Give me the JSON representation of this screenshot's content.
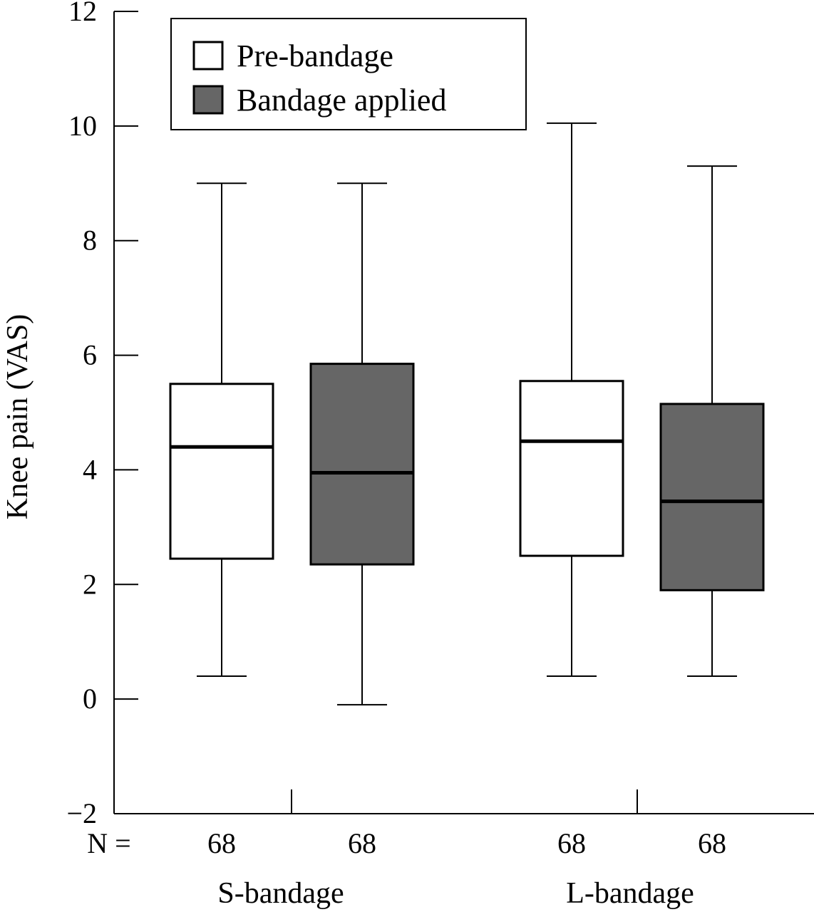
{
  "chart_data": {
    "type": "boxplot",
    "ylabel": "Knee pain (VAS)",
    "ylim": [
      -2,
      12
    ],
    "yticks": [
      -2,
      0,
      2,
      4,
      6,
      8,
      10,
      12
    ],
    "ytick_labels": [
      "−2",
      "0",
      "2",
      "4",
      "6",
      "8",
      "10",
      "12"
    ],
    "n_prefix": "N =",
    "legend": {
      "placement": "top-left",
      "entries": [
        {
          "name": "Pre-bandage",
          "color": "#ffffff"
        },
        {
          "name": "Bandage applied",
          "color": "#666666"
        }
      ]
    },
    "groups": [
      {
        "label": "S-bandage",
        "boxes": [
          {
            "series": "Pre-bandage",
            "min": 0.4,
            "q1": 2.45,
            "median": 4.4,
            "q3": 5.5,
            "max": 9.0,
            "n": "68"
          },
          {
            "series": "Bandage applied",
            "min": -0.1,
            "q1": 2.35,
            "median": 3.95,
            "q3": 5.85,
            "max": 9.0,
            "n": "68"
          }
        ]
      },
      {
        "label": "L-bandage",
        "boxes": [
          {
            "series": "Pre-bandage",
            "min": 0.4,
            "q1": 2.5,
            "median": 4.5,
            "q3": 5.55,
            "max": 10.05,
            "n": "68"
          },
          {
            "series": "Bandage applied",
            "min": 0.4,
            "q1": 1.9,
            "median": 3.45,
            "q3": 5.15,
            "max": 9.3,
            "n": "68"
          }
        ]
      }
    ]
  }
}
